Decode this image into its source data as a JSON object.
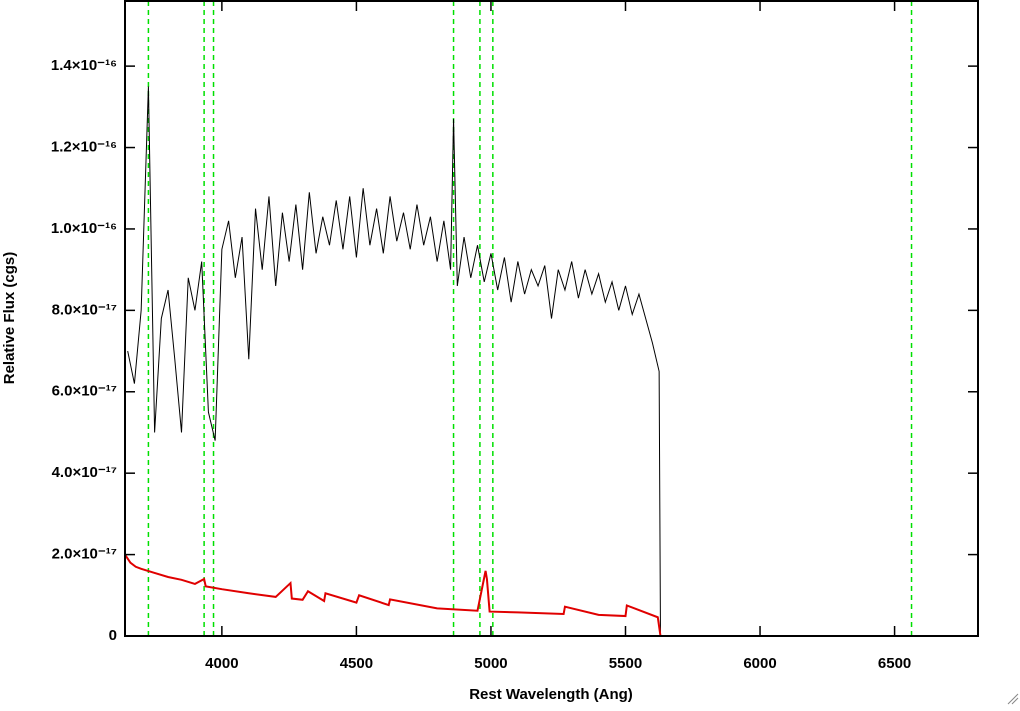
{
  "chart_data": {
    "type": "line",
    "xlabel": "Rest Wavelength (Ang)",
    "ylabel": "Relative Flux (cgs)",
    "xlim": [
      3640,
      6810
    ],
    "ylim": [
      0,
      1.56e-16
    ],
    "xticks": [
      4000,
      4500,
      5000,
      5500,
      6000,
      6500
    ],
    "yticks": [
      0,
      {
        "value": 2e-17,
        "label": "2.0×10⁻¹⁷"
      },
      {
        "value": 4e-17,
        "label": "4.0×10⁻¹⁷"
      },
      {
        "value": 6e-17,
        "label": "6.0×10⁻¹⁷"
      },
      {
        "value": 8e-17,
        "label": "8.0×10⁻¹⁷"
      },
      {
        "value": 1e-16,
        "label": "1.0×10⁻¹⁶"
      },
      {
        "value": 1.2e-16,
        "label": "1.2×10⁻¹⁶"
      },
      {
        "value": 1.4e-16,
        "label": "1.4×10⁻¹⁶"
      }
    ],
    "vlines": [
      3727,
      3934,
      3969,
      4861,
      4959,
      5007,
      6563
    ],
    "vline_color": "#00e000",
    "series": [
      {
        "color": "#000000",
        "x": [
          3650,
          3675,
          3700,
          3727,
          3750,
          3775,
          3800,
          3825,
          3850,
          3875,
          3900,
          3925,
          3950,
          3975,
          4000,
          4025,
          4050,
          4075,
          4100,
          4125,
          4150,
          4175,
          4200,
          4225,
          4250,
          4275,
          4300,
          4325,
          4350,
          4375,
          4400,
          4425,
          4450,
          4475,
          4500,
          4525,
          4550,
          4575,
          4600,
          4625,
          4650,
          4675,
          4700,
          4725,
          4750,
          4775,
          4800,
          4825,
          4850,
          4861,
          4875,
          4900,
          4925,
          4950,
          4975,
          5000,
          5025,
          5050,
          5075,
          5100,
          5125,
          5150,
          5175,
          5200,
          5225,
          5250,
          5275,
          5300,
          5325,
          5350,
          5375,
          5400,
          5425,
          5450,
          5475,
          5500,
          5525,
          5550,
          5575,
          5600,
          5625,
          5630,
          6810
        ],
        "values": [
          7e-17,
          6.2e-17,
          8e-17,
          1.35e-16,
          5e-17,
          7.8e-17,
          8.5e-17,
          6.8e-17,
          5e-17,
          8.8e-17,
          8e-17,
          9.2e-17,
          5.5e-17,
          4.8e-17,
          9.5e-17,
          1.02e-16,
          8.8e-17,
          9.8e-17,
          6.8e-17,
          1.05e-16,
          9e-17,
          1.08e-16,
          8.6e-17,
          1.04e-16,
          9.2e-17,
          1.06e-16,
          9e-17,
          1.09e-16,
          9.4e-17,
          1.03e-16,
          9.6e-17,
          1.07e-16,
          9.5e-17,
          1.08e-16,
          9.3e-17,
          1.1e-16,
          9.6e-17,
          1.05e-16,
          9.4e-17,
          1.08e-16,
          9.7e-17,
          1.04e-16,
          9.5e-17,
          1.06e-16,
          9.6e-17,
          1.03e-16,
          9.2e-17,
          1.02e-16,
          9e-17,
          1.27e-16,
          8.6e-17,
          9.8e-17,
          8.8e-17,
          9.6e-17,
          8.7e-17,
          9.4e-17,
          8.5e-17,
          9.3e-17,
          8.2e-17,
          9.2e-17,
          8.4e-17,
          9e-17,
          8.6e-17,
          9.1e-17,
          7.8e-17,
          9e-17,
          8.5e-17,
          9.2e-17,
          8.3e-17,
          9e-17,
          8.4e-17,
          8.9e-17,
          8.2e-17,
          8.7e-17,
          8e-17,
          8.6e-17,
          7.9e-17,
          8.4e-17,
          7.8e-17,
          7.2e-17,
          6.5e-17,
          0,
          0
        ]
      },
      {
        "color": "#e00000",
        "x": [
          3640,
          3660,
          3680,
          3700,
          3750,
          3800,
          3850,
          3900,
          3934,
          3940,
          4000,
          4100,
          4200,
          4255,
          4260,
          4300,
          4320,
          4380,
          4385,
          4500,
          4510,
          4620,
          4625,
          4800,
          4950,
          4980,
          4985,
          4995,
          5100,
          5270,
          5275,
          5400,
          5500,
          5505,
          5620,
          5630,
          6810
        ],
        "values": [
          2e-17,
          1.8e-17,
          1.7e-17,
          1.65e-17,
          1.55e-17,
          1.45e-17,
          1.38e-17,
          1.28e-17,
          1.4e-17,
          1.22e-17,
          1.15e-17,
          1.05e-17,
          9.6e-18,
          1.3e-17,
          9.2e-18,
          8.9e-18,
          1.1e-17,
          8.6e-18,
          1.05e-17,
          8.2e-18,
          1e-17,
          7.6e-18,
          9e-18,
          6.8e-18,
          6.2e-18,
          1.6e-17,
          1.4e-17,
          6e-18,
          5.8e-18,
          5.4e-18,
          7.2e-18,
          5.2e-18,
          4.9e-18,
          7.5e-18,
          4.6e-18,
          0,
          0
        ]
      }
    ]
  }
}
